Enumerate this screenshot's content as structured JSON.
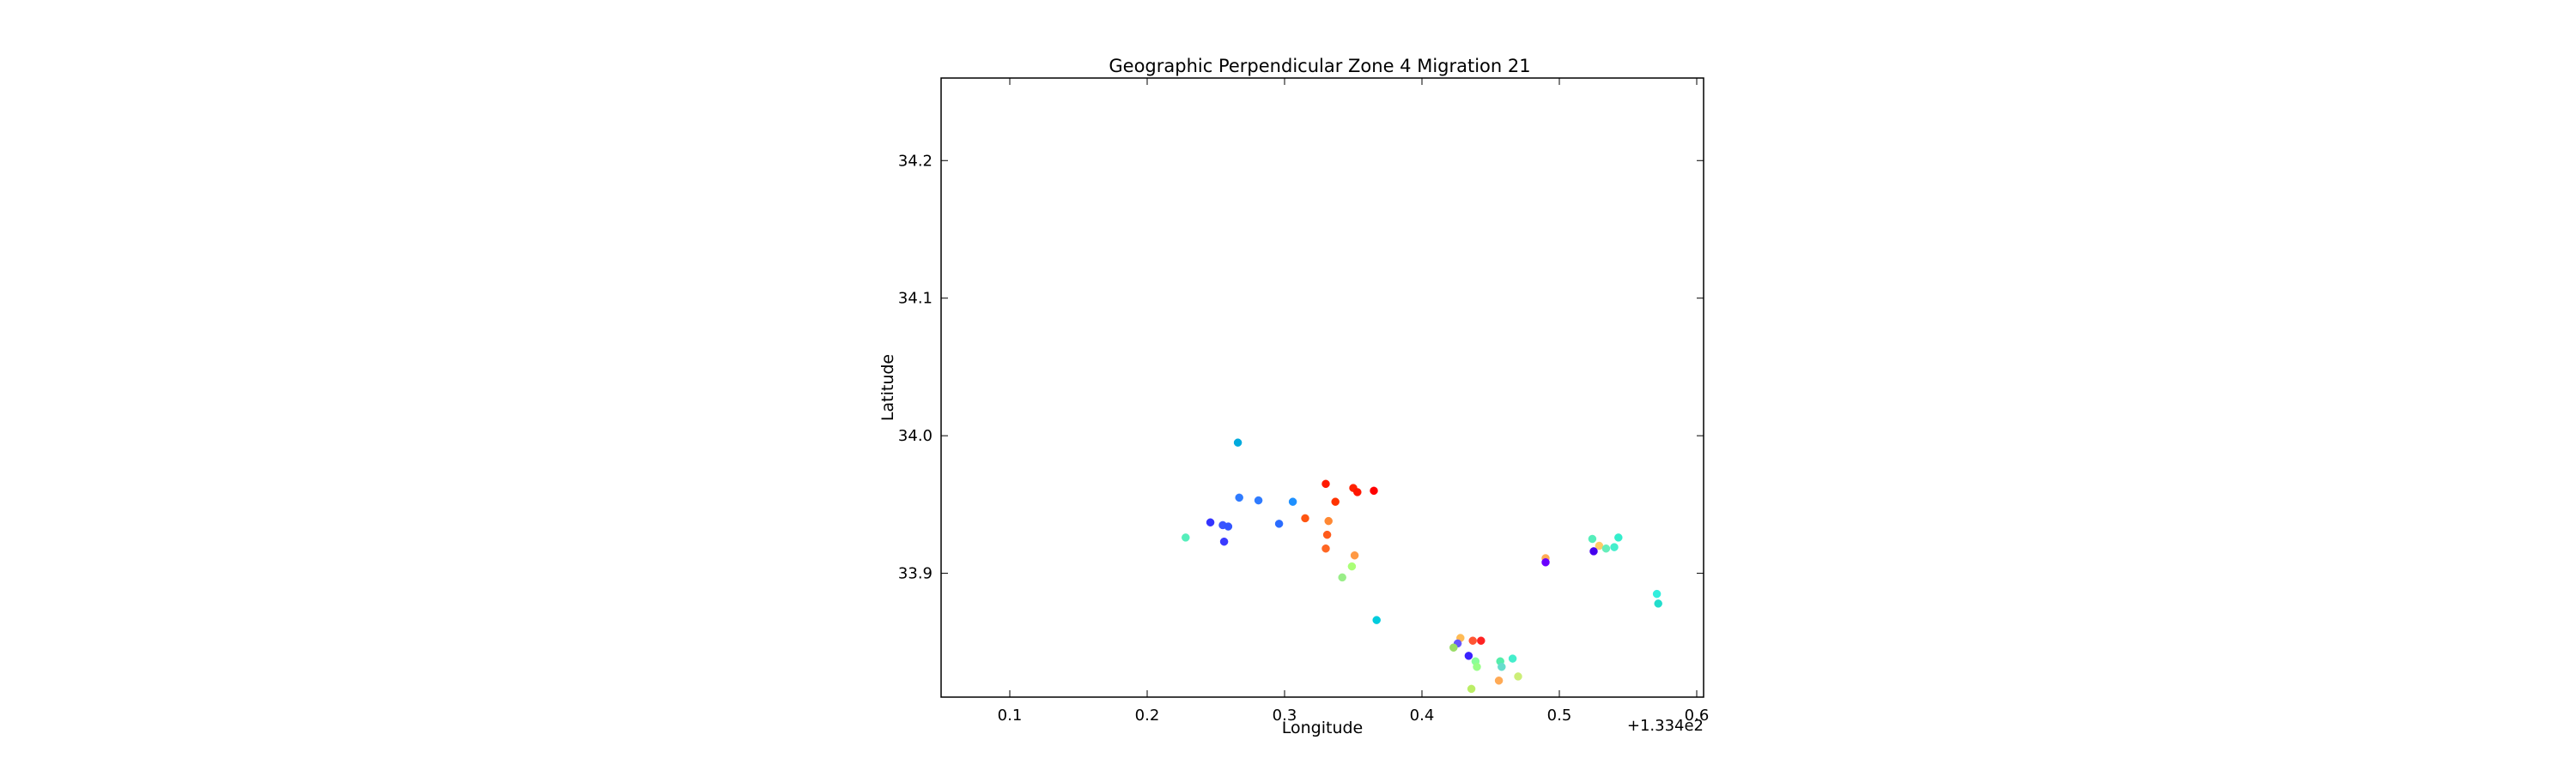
{
  "chart_data": {
    "type": "scatter",
    "title": "Geographic Perpendicular Zone 4 Migration 21",
    "xlabel": "Longitude",
    "ylabel": "Latitude",
    "x_offset_label": "+1.334e2",
    "x_offset": 133.4,
    "xlim": [
      133.45,
      134.005
    ],
    "ylim": [
      33.81,
      34.26
    ],
    "x_ticks": [
      133.5,
      133.6,
      133.7,
      133.8,
      133.9,
      134.0
    ],
    "x_tick_labels": [
      "0.1",
      "0.2",
      "0.3",
      "0.4",
      "0.5",
      "0.6"
    ],
    "y_ticks": [
      33.9,
      34.0,
      34.1,
      34.2
    ],
    "y_tick_labels": [
      "33.9",
      "34.0",
      "34.1",
      "34.2"
    ],
    "grid": false,
    "legend": "none",
    "points": [
      {
        "x": 133.666,
        "y": 33.995,
        "color": "#00aadd"
      },
      {
        "x": 133.667,
        "y": 33.955,
        "color": "#2f7bff"
      },
      {
        "x": 133.681,
        "y": 33.953,
        "color": "#2f7bff"
      },
      {
        "x": 133.706,
        "y": 33.952,
        "color": "#1e90ff"
      },
      {
        "x": 133.646,
        "y": 33.937,
        "color": "#3333ff"
      },
      {
        "x": 133.655,
        "y": 33.935,
        "color": "#3a55ff"
      },
      {
        "x": 133.659,
        "y": 33.934,
        "color": "#3355ff"
      },
      {
        "x": 133.656,
        "y": 33.923,
        "color": "#3a3aff"
      },
      {
        "x": 133.696,
        "y": 33.936,
        "color": "#2a6cff"
      },
      {
        "x": 133.628,
        "y": 33.926,
        "color": "#55eebb"
      },
      {
        "x": 133.73,
        "y": 33.965,
        "color": "#ff1a00"
      },
      {
        "x": 133.75,
        "y": 33.962,
        "color": "#ff2200"
      },
      {
        "x": 133.753,
        "y": 33.959,
        "color": "#ff1500"
      },
      {
        "x": 133.765,
        "y": 33.96,
        "color": "#ff0000"
      },
      {
        "x": 133.737,
        "y": 33.952,
        "color": "#ff3300"
      },
      {
        "x": 133.715,
        "y": 33.94,
        "color": "#ff5511"
      },
      {
        "x": 133.732,
        "y": 33.938,
        "color": "#ff8833"
      },
      {
        "x": 133.731,
        "y": 33.928,
        "color": "#ff5a1a"
      },
      {
        "x": 133.73,
        "y": 33.918,
        "color": "#ff6622"
      },
      {
        "x": 133.751,
        "y": 33.913,
        "color": "#ff9944"
      },
      {
        "x": 133.749,
        "y": 33.905,
        "color": "#aaff77"
      },
      {
        "x": 133.742,
        "y": 33.897,
        "color": "#99ee88"
      },
      {
        "x": 133.767,
        "y": 33.866,
        "color": "#00ccdd"
      },
      {
        "x": 133.89,
        "y": 33.911,
        "color": "#ffaa55"
      },
      {
        "x": 133.89,
        "y": 33.908,
        "color": "#6a00ff"
      },
      {
        "x": 133.924,
        "y": 33.925,
        "color": "#55eebb"
      },
      {
        "x": 133.929,
        "y": 33.92,
        "color": "#ffcc66"
      },
      {
        "x": 133.934,
        "y": 33.918,
        "color": "#66eebb"
      },
      {
        "x": 133.94,
        "y": 33.919,
        "color": "#44eecc"
      },
      {
        "x": 133.943,
        "y": 33.926,
        "color": "#33eecc"
      },
      {
        "x": 133.925,
        "y": 33.916,
        "color": "#4400ee"
      },
      {
        "x": 133.971,
        "y": 33.885,
        "color": "#33eedd"
      },
      {
        "x": 133.972,
        "y": 33.878,
        "color": "#22ddcc"
      },
      {
        "x": 133.828,
        "y": 33.853,
        "color": "#ffbb55"
      },
      {
        "x": 133.826,
        "y": 33.849,
        "color": "#6655ff"
      },
      {
        "x": 133.823,
        "y": 33.846,
        "color": "#99dd66"
      },
      {
        "x": 133.837,
        "y": 33.851,
        "color": "#ff5533"
      },
      {
        "x": 133.843,
        "y": 33.851,
        "color": "#ff2222"
      },
      {
        "x": 133.834,
        "y": 33.84,
        "color": "#3a22ff"
      },
      {
        "x": 133.839,
        "y": 33.836,
        "color": "#88ff99"
      },
      {
        "x": 133.84,
        "y": 33.832,
        "color": "#99ff88"
      },
      {
        "x": 133.857,
        "y": 33.836,
        "color": "#55eeaa"
      },
      {
        "x": 133.858,
        "y": 33.832,
        "color": "#66ddcc"
      },
      {
        "x": 133.866,
        "y": 33.838,
        "color": "#44eecc"
      },
      {
        "x": 133.87,
        "y": 33.825,
        "color": "#ccee77"
      },
      {
        "x": 133.856,
        "y": 33.822,
        "color": "#ffaa55"
      },
      {
        "x": 133.836,
        "y": 33.816,
        "color": "#bbee66"
      }
    ]
  }
}
